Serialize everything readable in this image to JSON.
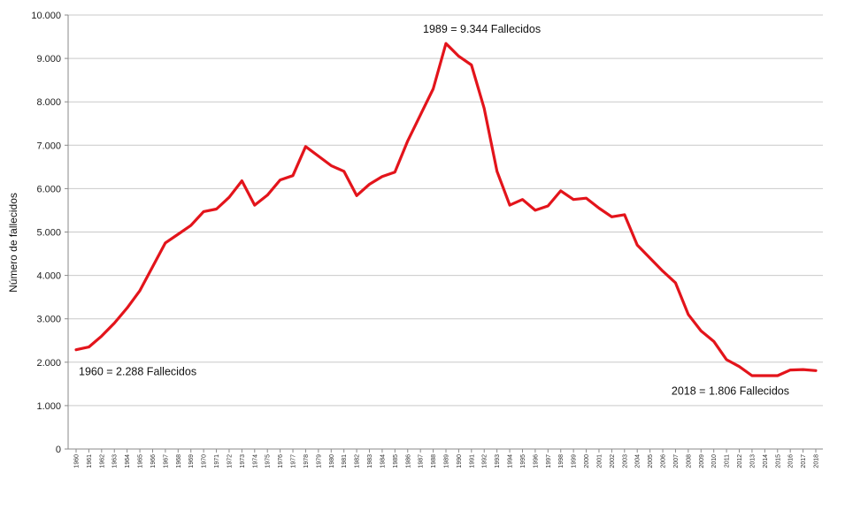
{
  "chart_data": {
    "type": "line",
    "title": "",
    "xlabel": "",
    "ylabel": "Número de fallecidos",
    "ylim": [
      0,
      10000
    ],
    "grid": true,
    "legend": "none",
    "yticks": [
      0,
      1000,
      2000,
      3000,
      4000,
      5000,
      6000,
      7000,
      8000,
      9000,
      10000
    ],
    "ytick_labels": [
      "0",
      "1.000",
      "2.000",
      "3.000",
      "4.000",
      "5.000",
      "6.000",
      "7.000",
      "8.000",
      "9.000",
      "10.000"
    ],
    "x": [
      1960,
      1961,
      1962,
      1963,
      1964,
      1965,
      1966,
      1967,
      1968,
      1969,
      1970,
      1971,
      1972,
      1973,
      1974,
      1975,
      1976,
      1977,
      1978,
      1979,
      1980,
      1981,
      1982,
      1983,
      1984,
      1985,
      1986,
      1987,
      1988,
      1989,
      1990,
      1991,
      1992,
      1993,
      1994,
      1995,
      1996,
      1997,
      1998,
      1999,
      2000,
      2001,
      2002,
      2003,
      2004,
      2005,
      2006,
      2007,
      2008,
      2009,
      2010,
      2011,
      2012,
      2013,
      2014,
      2015,
      2016,
      2017,
      2018
    ],
    "series": [
      {
        "values": [
          2288,
          2350,
          2600,
          2900,
          3250,
          3650,
          4200,
          4750,
          4950,
          5150,
          5470,
          5530,
          5800,
          6180,
          5620,
          5850,
          6200,
          6300,
          6970,
          6750,
          6530,
          6400,
          5840,
          6100,
          6280,
          6380,
          7100,
          7700,
          8300,
          9344,
          9050,
          8850,
          7850,
          6400,
          5620,
          5750,
          5500,
          5600,
          5950,
          5750,
          5780,
          5550,
          5350,
          5400,
          4700,
          4400,
          4100,
          3830,
          3100,
          2720,
          2480,
          2060,
          1900,
          1690,
          1690,
          1690,
          1820,
          1830,
          1806
        ],
        "color": "#e3141b"
      }
    ],
    "annotations": [
      {
        "text": "1989 = 9.344 Fallecidos",
        "x": 1989,
        "y": 9344,
        "anchor": "above"
      },
      {
        "text": "1960 = 2.288 Fallecidos",
        "x": 1960,
        "y": 2288,
        "anchor": "below"
      },
      {
        "text": "2018 = 1.806 Fallecidos",
        "x": 2018,
        "y": 1806,
        "anchor": "below"
      }
    ]
  }
}
